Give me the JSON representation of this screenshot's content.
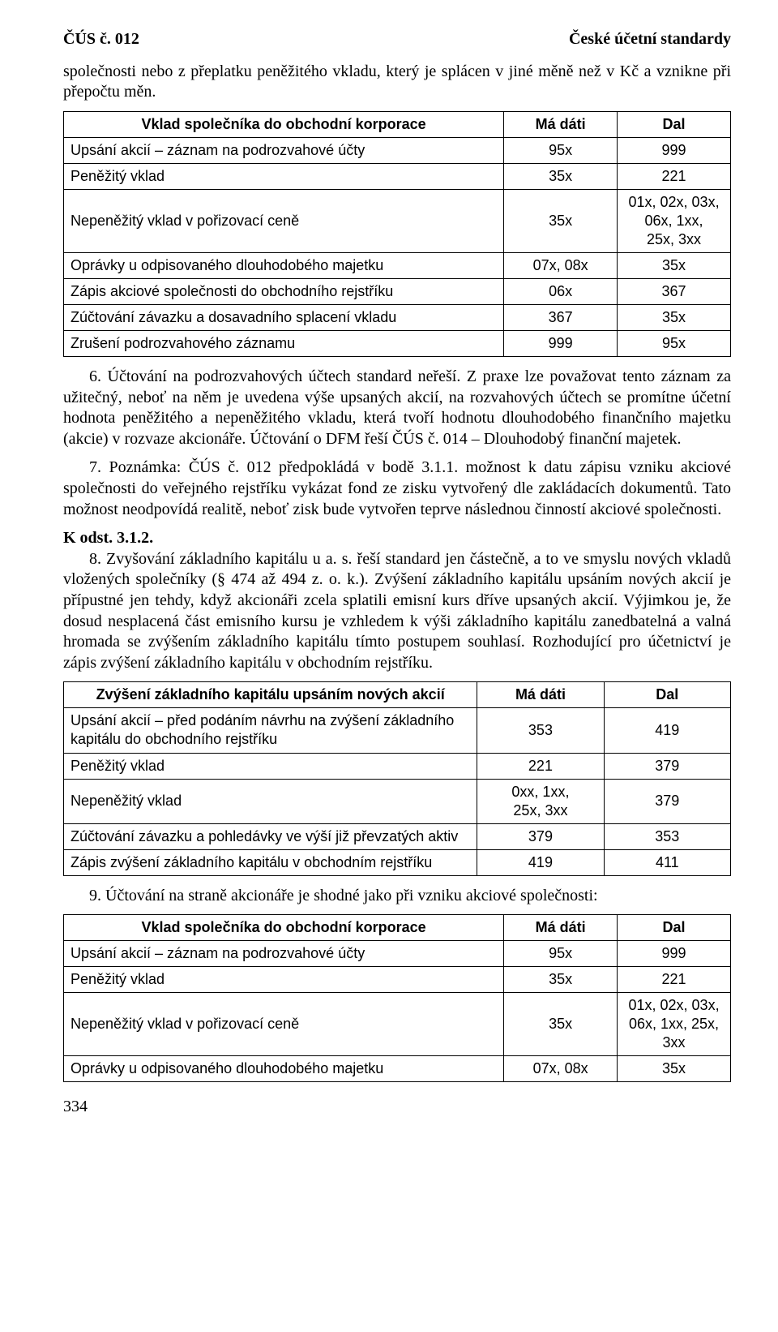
{
  "header": {
    "left": "ČÚS č. 012",
    "right": "České účetní standardy"
  },
  "intro_para": "společnosti nebo z přeplatku peněžitého vkladu, který je splácen v jiné měně než v Kč a vznikne při přepočtu měn.",
  "table1": {
    "title": "Vklad společníka do obchodní korporace",
    "col_md": "Má dáti",
    "col_dal": "Dal",
    "rows": [
      {
        "desc": "Upsání akcií – záznam na podrozvahové účty",
        "md": "95x",
        "dal": "999"
      },
      {
        "desc": "Peněžitý vklad",
        "md": "35x",
        "dal": "221"
      },
      {
        "desc": "Nepeněžitý vklad v pořizovací ceně",
        "md": "35x",
        "dal": "01x, 02x, 03x,\n06x, 1xx,\n25x, 3xx"
      },
      {
        "desc": "Oprávky u odpisovaného dlouhodobého majetku",
        "md": "07x, 08x",
        "dal": "35x"
      },
      {
        "desc": "Zápis akciové společnosti do obchodního rejstříku",
        "md": "06x",
        "dal": "367"
      },
      {
        "desc": "Zúčtování závazku a dosavadního splacení vkladu",
        "md": "367",
        "dal": "35x"
      },
      {
        "desc": "Zrušení podrozvahového záznamu",
        "md": "999",
        "dal": "95x"
      }
    ]
  },
  "para6": "6. Účtování na podrozvahových účtech standard neřeší. Z praxe lze považovat tento záznam za užitečný, neboť na něm je uvedena výše upsaných akcií, na rozvahových účtech se promítne účetní hodnota peněžitého a nepeněžitého vkladu, která tvoří hodnotu dlouhodobého finančního majetku (akcie) v rozvaze akcionáře. Účtování o DFM řeší ČÚS č. 014 – Dlouhodobý finanční majetek.",
  "para7": "7. Poznámka: ČÚS č. 012 předpokládá v bodě 3.1.1. možnost k datu zápisu vzniku akciové společnosti do veřejného rejstříku vykázat fond ze zisku vytvořený dle zakládacích dokumentů. Tato možnost neodpovídá realitě, neboť zisk bude vytvořen teprve následnou činností akciové společnosti.",
  "section_head": "K odst. 3.1.2.",
  "para8": "8. Zvyšování základního kapitálu u a. s. řeší standard jen částečně, a to ve smyslu nových vkladů vložených společníky (§ 474 až 494 z. o. k.). Zvýšení základního kapitálu upsáním nových akcií je přípustné jen tehdy, když akcionáři zcela splatili emisní kurs dříve upsaných akcií. Výjimkou je, že dosud nesplacená část emisního kursu je vzhledem k výši základního kapitálu zanedbatelná a valná hromada se zvýšením základního kapitálu tímto postupem souhlasí. Rozhodující pro účetnictví je zápis zvýšení základního kapitálu v obchodním rejstříku.",
  "table2": {
    "title": "Zvýšení základního kapitálu upsáním nových akcií",
    "col_md": "Má dáti",
    "col_dal": "Dal",
    "rows": [
      {
        "desc": "Upsání akcií – před podáním návrhu na zvýšení základního kapitálu do obchodního rejstříku",
        "md": "353",
        "dal": "419"
      },
      {
        "desc": "Peněžitý vklad",
        "md": "221",
        "dal": "379"
      },
      {
        "desc": "Nepeněžitý vklad",
        "md": "0xx, 1xx,\n25x, 3xx",
        "dal": "379"
      },
      {
        "desc": "Zúčtování závazku a pohledávky ve výší již převzatých aktiv",
        "md": "379",
        "dal": "353"
      },
      {
        "desc": "Zápis zvýšení základního kapitálu v obchodním rejstříku",
        "md": "419",
        "dal": "411"
      }
    ]
  },
  "para9": "9. Účtování na straně akcionáře je shodné jako při vzniku akciové společnosti:",
  "table3": {
    "title": "Vklad společníka do obchodní korporace",
    "col_md": "Má dáti",
    "col_dal": "Dal",
    "rows": [
      {
        "desc": "Upsání akcií – záznam na podrozvahové účty",
        "md": "95x",
        "dal": "999"
      },
      {
        "desc": "Peněžitý vklad",
        "md": "35x",
        "dal": "221"
      },
      {
        "desc": "Nepeněžitý vklad v pořizovací ceně",
        "md": "35x",
        "dal": "01x, 02x, 03x,\n06x, 1xx, 25x,\n3xx"
      },
      {
        "desc": "Oprávky u odpisovaného dlouhodobého majetku",
        "md": "07x, 08x",
        "dal": "35x"
      }
    ]
  },
  "page_number": "334"
}
